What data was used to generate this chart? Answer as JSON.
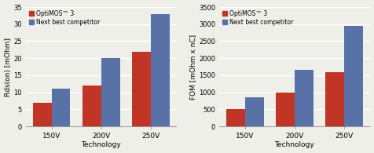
{
  "categories": [
    "150V",
    "200V",
    "250V"
  ],
  "rds_optimOS": [
    7,
    12,
    22
  ],
  "rds_competitor": [
    11,
    20,
    33
  ],
  "fom_optimOS": [
    500,
    1000,
    1600
  ],
  "fom_competitor": [
    850,
    1650,
    2950
  ],
  "rds_ylabel": "Rds(on) [mOhm]",
  "fom_ylabel": "FOM [mOhm x nC]",
  "xlabel": "Technology",
  "rds_ylim": [
    0,
    35
  ],
  "fom_ylim": [
    0,
    3500
  ],
  "rds_yticks": [
    0,
    5,
    10,
    15,
    20,
    25,
    30,
    35
  ],
  "fom_yticks": [
    0,
    500,
    1000,
    1500,
    2000,
    2500,
    3000,
    3500
  ],
  "color_optimOS": "#C13526",
  "color_competitor": "#5872A8",
  "legend_label_1": "OptiMOS™ 3",
  "legend_label_2": "Next best competitor",
  "bar_width": 0.38,
  "background_color": "#efefea",
  "grid_color": "#ffffff"
}
